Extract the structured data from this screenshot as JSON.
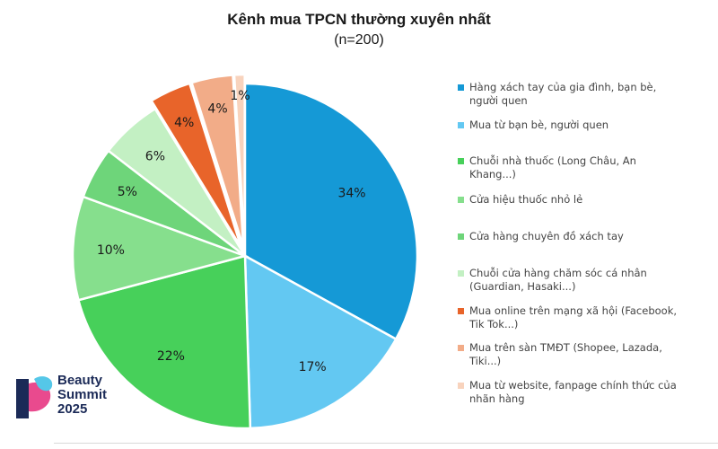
{
  "chart_data": {
    "type": "pie",
    "title": "Kênh mua TPCN thường xuyên nhất",
    "subtitle": "(n=200)",
    "categories": [
      "Hàng xách tay của gia đình, bạn bè, người quen",
      "Mua từ bạn bè, người quen",
      "Chuỗi nhà thuốc (Long Châu, An Khang...)",
      "Cửa hiệu thuốc nhỏ lẻ",
      "Cửa hàng chuyên đồ xách tay",
      "Chuỗi cửa hàng chăm sóc cá nhân (Guardian, Hasaki...)",
      "Mua online trên mạng xã hội (Facebook, Tik Tok...)",
      "Mua trên sàn TMĐT (Shopee, Lazada, Tiki...)",
      "Mua từ website, fanpage chính thức của nhãn hàng"
    ],
    "values": [
      34,
      17,
      22,
      10,
      5,
      6,
      4,
      4,
      1
    ],
    "value_labels": [
      "34%",
      "17%",
      "22%",
      "10%",
      "5%",
      "6%",
      "4%",
      "4%",
      "1%"
    ],
    "colors": [
      "#1599d6",
      "#63c8f2",
      "#47d05a",
      "#86df8d",
      "#6ed57a",
      "#c3f0c3",
      "#e8642a",
      "#f2ac88",
      "#f8d3bd"
    ],
    "legend_position": "right"
  },
  "legend_lines": [
    [
      "Hàng xách tay của gia đình, bạn bè,",
      "người quen"
    ],
    [
      "Mua từ bạn bè, người quen"
    ],
    [
      "Chuỗi nhà thuốc (Long Châu, An",
      "Khang...)"
    ],
    [
      "Cửa hiệu thuốc nhỏ lẻ"
    ],
    [
      "Cửa hàng chuyên đồ xách tay"
    ],
    [
      "Chuỗi cửa hàng chăm sóc cá nhân",
      "(Guardian, Hasaki...)"
    ],
    [
      "Mua online trên mạng xã hội (Facebook,",
      "Tik Tok...)"
    ],
    [
      "Mua trên sàn TMĐT (Shopee, Lazada,",
      "Tiki...)"
    ],
    [
      "Mua từ website, fanpage chính thức của",
      "nhãn hàng"
    ]
  ],
  "logo": {
    "line1": "Beauty",
    "line2": "Summit",
    "line3": "2025",
    "colors": [
      "#1b2a57",
      "#e94a8e",
      "#55c7e8"
    ]
  }
}
